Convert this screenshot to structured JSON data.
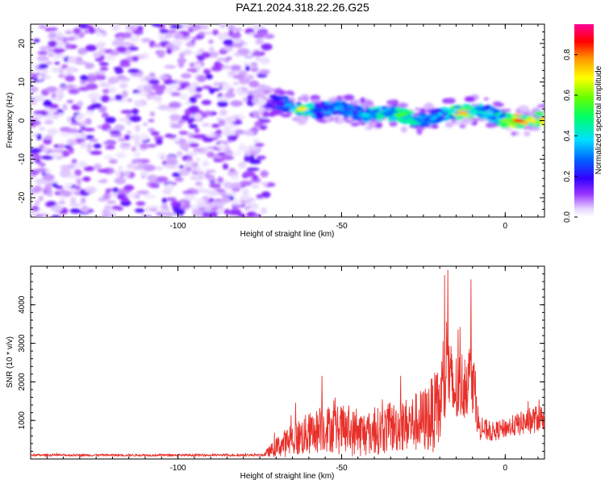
{
  "title": "PAZ1.2024.318.22.26.G25",
  "chart_data": [
    {
      "type": "heatmap",
      "xlabel": "Height of straight line (km)",
      "ylabel": "Frequency (Hz)",
      "xlim": [
        -145,
        12
      ],
      "ylim": [
        -25,
        25
      ],
      "xticks": [
        -100,
        -50,
        0
      ],
      "yticks": [
        -20,
        -10,
        0,
        10,
        20
      ],
      "colorbar": {
        "label": "Normalized spectral amplitude",
        "range": [
          0,
          0.95
        ],
        "ticks": [
          "0.0",
          "0.2",
          "0.4",
          "0.6",
          "0.8"
        ],
        "colormap": "rainbow (white-purple-blue-cyan-green-yellow-orange-red-pink)"
      },
      "description_regions": [
        {
          "x_range": [
            -145,
            -72
          ],
          "frequency_range": [
            -25,
            25
          ],
          "amplitude": "low (0.0-0.15), noise"
        },
        {
          "x_range": [
            -72,
            12
          ],
          "frequency_range": [
            -2,
            7
          ],
          "amplitude": "0.1-0.95, signal band near 0-5 Hz"
        }
      ],
      "ridge": {
        "x": [
          -72,
          -66,
          -62,
          -57,
          -52,
          -47,
          -42,
          -37,
          -32,
          -27,
          -22,
          -18,
          -13,
          -8,
          -4,
          0,
          4,
          8,
          12
        ],
        "frequency": [
          5,
          4,
          3,
          2.5,
          3.5,
          2.5,
          1.5,
          2,
          1.5,
          0,
          1,
          2,
          2,
          3,
          1.5,
          0,
          0,
          0,
          0.5
        ],
        "amplitude": [
          0.2,
          0.35,
          0.7,
          0.3,
          0.4,
          0.35,
          0.45,
          0.5,
          0.55,
          0.45,
          0.35,
          0.5,
          0.75,
          0.45,
          0.45,
          0.6,
          0.85,
          0.7,
          0.75
        ]
      }
    },
    {
      "type": "line",
      "xlabel": "Height of straight line (km)",
      "ylabel": "SNR (10 * v/v)",
      "xlim": [
        -145,
        12
      ],
      "ylim": [
        0,
        5000
      ],
      "xticks": [
        -100,
        -50,
        0
      ],
      "yticks": [
        1000,
        2000,
        3000,
        4000
      ],
      "color": "#e8302a",
      "envelope": {
        "x": [
          -145,
          -74,
          -70,
          -65,
          -60,
          -55,
          -50,
          -45,
          -40,
          -35,
          -30,
          -25,
          -20,
          -18,
          -16,
          -12,
          -10,
          -8,
          -4,
          0,
          4,
          8,
          12
        ],
        "mean": [
          100,
          100,
          300,
          500,
          650,
          800,
          750,
          650,
          700,
          800,
          900,
          1000,
          1300,
          2400,
          1700,
          2000,
          2200,
          800,
          700,
          800,
          900,
          1000,
          1100
        ],
        "spread": [
          30,
          30,
          250,
          450,
          550,
          600,
          650,
          600,
          600,
          650,
          700,
          850,
          1100,
          1500,
          1000,
          900,
          1000,
          300,
          250,
          250,
          300,
          350,
          350
        ]
      },
      "peaks": [
        {
          "x": -17.5,
          "y": 4900
        },
        {
          "x": -10.5,
          "y": 4650
        },
        {
          "x": -19,
          "y": 3050
        },
        {
          "x": -32,
          "y": 2150
        },
        {
          "x": -56,
          "y": 2150
        },
        {
          "x": -64,
          "y": 1450
        }
      ]
    }
  ]
}
